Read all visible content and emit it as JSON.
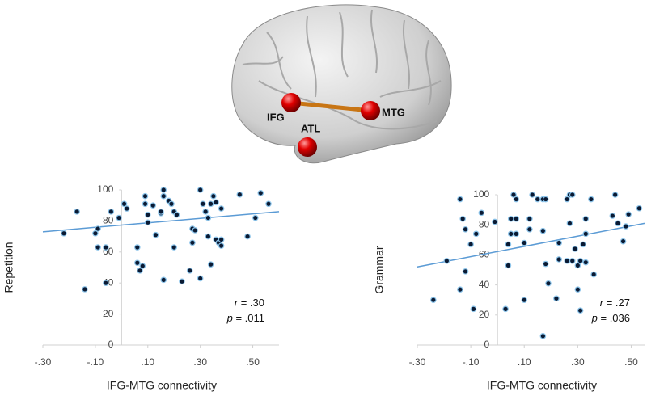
{
  "brain_labels": [
    "IFG",
    "MTG",
    "ATL"
  ],
  "chart_data": [
    {
      "type": "scatter",
      "x_label": "IFG-MTG connectivity",
      "y_label": "Repetition",
      "annotations": [
        {
          "symbol": "r",
          "text": "= .30"
        },
        {
          "symbol": "p",
          "text": "= .011"
        }
      ],
      "xlim": [
        -0.3,
        0.6
      ],
      "ylim": [
        0,
        100
      ],
      "xticks": [
        {
          "value": -0.3,
          "label": "-.30"
        },
        {
          "value": -0.1,
          "label": "-.10"
        },
        {
          "value": 0.1,
          "label": ".10"
        },
        {
          "value": 0.3,
          "label": ".30"
        },
        {
          "value": 0.5,
          "label": ".50"
        }
      ],
      "yticks": [
        0,
        20,
        40,
        60,
        80,
        100
      ],
      "color": "#0a1a33",
      "trendline_color": "#5b9bd5",
      "trendline": {
        "x": [
          -0.3,
          0.6
        ],
        "y": [
          73,
          86
        ]
      },
      "x": [
        -0.22,
        -0.17,
        -0.14,
        -0.1,
        -0.09,
        -0.09,
        -0.06,
        -0.06,
        -0.04,
        -0.01,
        0.01,
        0.02,
        0.06,
        0.06,
        0.07,
        0.08,
        0.09,
        0.09,
        0.1,
        0.1,
        0.12,
        0.13,
        0.15,
        0.15,
        0.16,
        0.16,
        0.16,
        0.18,
        0.19,
        0.2,
        0.2,
        0.21,
        0.23,
        0.26,
        0.27,
        0.27,
        0.28,
        0.3,
        0.3,
        0.31,
        0.32,
        0.33,
        0.33,
        0.34,
        0.34,
        0.35,
        0.36,
        0.36,
        0.37,
        0.38,
        0.38,
        0.38,
        0.45,
        0.48,
        0.51,
        0.53,
        0.56
      ],
      "y": [
        72,
        86,
        36,
        72,
        75,
        63,
        63,
        40,
        86,
        82,
        91,
        88,
        63,
        53,
        48,
        51,
        96,
        91,
        84,
        79,
        90,
        71,
        85,
        86,
        100,
        42,
        96,
        93,
        91,
        63,
        86,
        84,
        41,
        48,
        75,
        66,
        74,
        43,
        100,
        91,
        86,
        82,
        70,
        91,
        52,
        96,
        92,
        68,
        66,
        64,
        68,
        88,
        97,
        70,
        82,
        98,
        91
      ]
    },
    {
      "type": "scatter",
      "x_label": "IFG-MTG connectivity",
      "y_label": "Grammar",
      "annotations": [
        {
          "symbol": "r",
          "text": "= .27"
        },
        {
          "symbol": "p",
          "text": "= .036"
        }
      ],
      "xlim": [
        -0.3,
        0.55
      ],
      "ylim": [
        0,
        100
      ],
      "xticks": [
        {
          "value": -0.3,
          "label": "-.30"
        },
        {
          "value": -0.1,
          "label": "-.10"
        },
        {
          "value": 0.1,
          "label": ".10"
        },
        {
          "value": 0.3,
          "label": ".30"
        },
        {
          "value": 0.5,
          "label": ".50"
        }
      ],
      "yticks": [
        0,
        20,
        40,
        60,
        80,
        100
      ],
      "color": "#0a1a33",
      "trendline_color": "#5b9bd5",
      "trendline": {
        "x": [
          -0.3,
          0.55
        ],
        "y": [
          52,
          81
        ]
      },
      "x": [
        -0.24,
        -0.19,
        -0.14,
        -0.14,
        -0.13,
        -0.12,
        -0.12,
        -0.09,
        -0.1,
        -0.08,
        -0.06,
        -0.01,
        0.03,
        0.04,
        0.04,
        0.05,
        0.05,
        0.06,
        0.07,
        0.07,
        0.07,
        0.1,
        0.1,
        0.12,
        0.12,
        0.13,
        0.15,
        0.17,
        0.17,
        0.18,
        0.17,
        0.18,
        0.19,
        0.22,
        0.23,
        0.23,
        0.26,
        0.26,
        0.27,
        0.27,
        0.28,
        0.28,
        0.29,
        0.3,
        0.3,
        0.31,
        0.31,
        0.32,
        0.33,
        0.33,
        0.33,
        0.35,
        0.36,
        0.43,
        0.44,
        0.45,
        0.47,
        0.48,
        0.49,
        0.53
      ],
      "y": [
        30,
        56,
        37,
        97,
        84,
        77,
        49,
        24,
        67,
        74,
        88,
        82,
        24,
        53,
        67,
        74,
        84,
        100,
        84,
        97,
        74,
        68,
        30,
        84,
        77,
        100,
        97,
        97,
        76,
        97,
        6,
        54,
        41,
        31,
        57,
        68,
        97,
        56,
        100,
        81,
        56,
        100,
        64,
        53,
        37,
        23,
        56,
        67,
        74,
        55,
        84,
        97,
        47,
        86,
        100,
        81,
        69,
        79,
        87,
        91
      ]
    }
  ]
}
